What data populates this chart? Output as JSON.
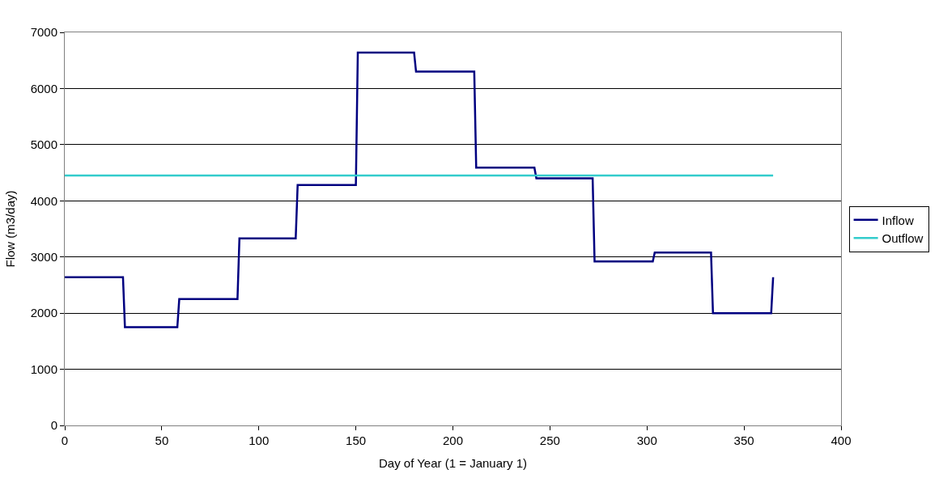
{
  "chart_data": {
    "type": "line",
    "xlabel": "Day of Year (1 = January 1)",
    "ylabel": "Flow (m3/day)",
    "xlim": [
      0,
      400
    ],
    "xticks": [
      0,
      50,
      100,
      150,
      200,
      250,
      300,
      350,
      400
    ],
    "ylim": [
      0,
      7000
    ],
    "yticks": [
      0,
      1000,
      2000,
      3000,
      4000,
      5000,
      6000,
      7000
    ],
    "grid": "y",
    "legend": "right",
    "marker": "none",
    "line_style": "solid",
    "series": [
      {
        "name": "Inflow",
        "color": "#000080",
        "x": [
          0,
          30,
          31,
          58,
          59,
          89,
          90,
          119,
          120,
          150,
          151,
          180,
          181,
          211,
          212,
          242,
          243,
          272,
          273,
          303,
          304,
          333,
          334,
          364,
          365
        ],
        "values": [
          2640,
          2640,
          1750,
          1750,
          2250,
          2250,
          3330,
          3330,
          4280,
          4280,
          6640,
          6640,
          6300,
          6300,
          4590,
          4590,
          4400,
          4400,
          2920,
          2920,
          3080,
          3080,
          2000,
          2000,
          2640
        ]
      },
      {
        "name": "Outflow",
        "color": "#33cccc",
        "x": [
          0,
          365
        ],
        "values": [
          4450,
          4450
        ]
      }
    ]
  }
}
